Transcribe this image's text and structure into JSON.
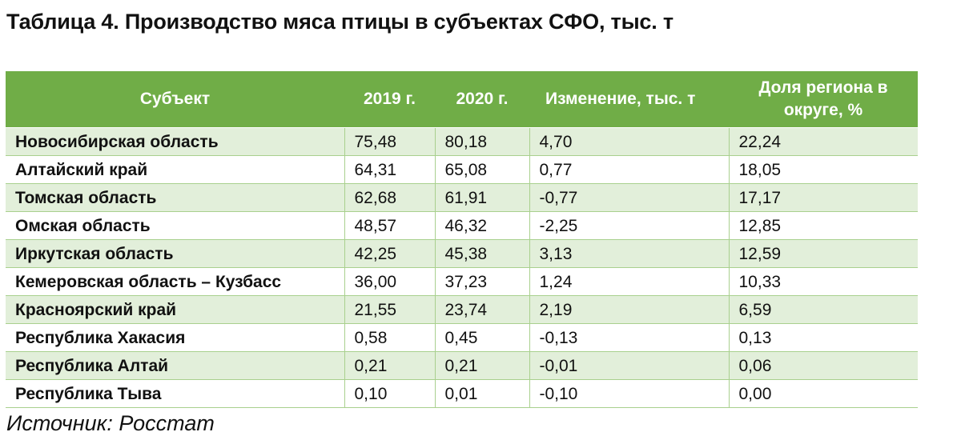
{
  "title": "Таблица 4. Производство мяса птицы в субъектах СФО, тыс. т",
  "table": {
    "headers": {
      "subject": "Субъект",
      "y2019": "2019 г.",
      "y2020": "2020 г.",
      "change": "Изменение, тыс. т",
      "share_line1": "Доля региона в",
      "share_line2": "округе, %"
    },
    "rows": [
      {
        "subject": "Новосибирская область",
        "y2019": "75,48",
        "y2020": "80,18",
        "change": "4,70",
        "share": "22,24"
      },
      {
        "subject": "Алтайский край",
        "y2019": "64,31",
        "y2020": "65,08",
        "change": "0,77",
        "share": "18,05"
      },
      {
        "subject": "Томская область",
        "y2019": "62,68",
        "y2020": "61,91",
        "change": "-0,77",
        "share": "17,17"
      },
      {
        "subject": "Омская область",
        "y2019": "48,57",
        "y2020": "46,32",
        "change": "-2,25",
        "share": "12,85"
      },
      {
        "subject": "Иркутская область",
        "y2019": "42,25",
        "y2020": "45,38",
        "change": "3,13",
        "share": "12,59"
      },
      {
        "subject": "Кемеровская область – Кузбасс",
        "y2019": "36,00",
        "y2020": "37,23",
        "change": "1,24",
        "share": "10,33"
      },
      {
        "subject": "Красноярский край",
        "y2019": "21,55",
        "y2020": "23,74",
        "change": "2,19",
        "share": "6,59"
      },
      {
        "subject": "Республика Хакасия",
        "y2019": "0,58",
        "y2020": "0,45",
        "change": "-0,13",
        "share": "0,13"
      },
      {
        "subject": "Республика Алтай",
        "y2019": "0,21",
        "y2020": "0,21",
        "change": "-0,01",
        "share": "0,06"
      },
      {
        "subject": "Республика Тыва",
        "y2019": "0,10",
        "y2020": "0,01",
        "change": "-0,10",
        "share": "0,00"
      }
    ]
  },
  "source": "Источник: Росстат",
  "colors": {
    "header_bg": "#70ad47",
    "header_text": "#ffffff",
    "stripe_bg": "#e2efda",
    "border": "#a9d08e"
  }
}
